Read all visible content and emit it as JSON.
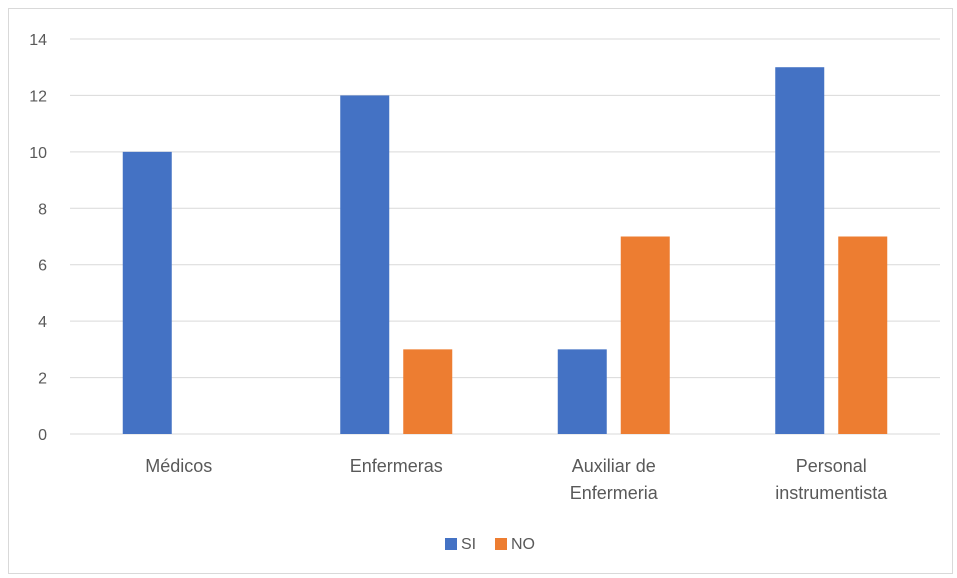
{
  "chart_data": {
    "type": "bar",
    "title": "",
    "xlabel": "",
    "ylabel": "",
    "categories": [
      [
        "Médicos"
      ],
      [
        "Enfermeras"
      ],
      [
        "Auxiliar de",
        "Enfermeria"
      ],
      [
        "Personal",
        "instrumentista"
      ]
    ],
    "series": [
      {
        "name": "SI",
        "color": "#4472C4",
        "values": [
          10,
          12,
          3,
          13
        ]
      },
      {
        "name": "NO",
        "color": "#ED7D31",
        "values": [
          0,
          3,
          7,
          7
        ]
      }
    ],
    "ylim": [
      0,
      14
    ],
    "yticks": [
      0,
      2,
      4,
      6,
      8,
      10,
      12,
      14
    ],
    "grid": true,
    "legend_position": "bottom",
    "gridline_color": "#d9d9d9"
  }
}
